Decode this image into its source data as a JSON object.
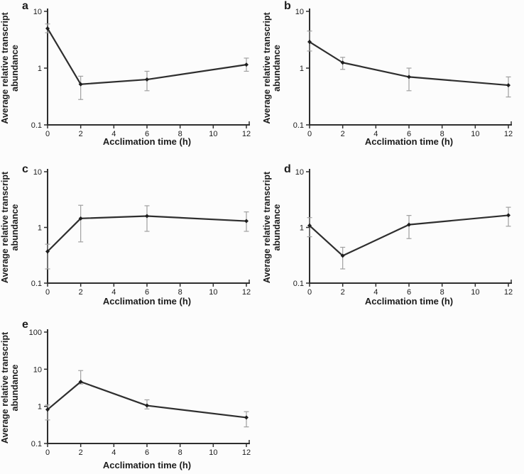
{
  "figure": {
    "background_color": "#fcfcfc",
    "axis_color": "#2e2e2e",
    "line_color": "#2e2e2e",
    "marker_color": "#1e1e1e",
    "error_bar_color": "#a0a0a0",
    "text_color": "#1c1c1c"
  },
  "chart_data": [
    {
      "type": "line",
      "panel": "a",
      "xlabel": "Acclimation time (h)",
      "ylabel_lines": [
        "Average relative transcript",
        "abundance"
      ],
      "yscale": "log",
      "xlim": [
        0,
        12
      ],
      "ylim": [
        0.1,
        10
      ],
      "xticks": [
        0,
        2,
        4,
        6,
        8,
        10,
        12
      ],
      "yticks": [
        0.1,
        1,
        10
      ],
      "x": [
        0,
        2,
        6,
        12
      ],
      "y": [
        5.0,
        0.52,
        0.63,
        1.15
      ],
      "y_err_low": [
        4.2,
        0.28,
        0.4,
        0.88
      ],
      "y_err_high": [
        6.0,
        0.72,
        0.88,
        1.5
      ]
    },
    {
      "type": "line",
      "panel": "b",
      "xlabel": "Acclimation time (h)",
      "ylabel_lines": [
        "Average relative transcript",
        "abundance"
      ],
      "yscale": "log",
      "xlim": [
        0,
        12
      ],
      "ylim": [
        0.1,
        10
      ],
      "xticks": [
        0,
        2,
        4,
        6,
        8,
        10,
        12
      ],
      "yticks": [
        0.1,
        1,
        10
      ],
      "x": [
        0,
        2,
        6,
        12
      ],
      "y": [
        2.9,
        1.25,
        0.7,
        0.5
      ],
      "y_err_low": [
        2.0,
        0.95,
        0.4,
        0.31
      ],
      "y_err_high": [
        4.5,
        1.55,
        1.0,
        0.7
      ]
    },
    {
      "type": "line",
      "panel": "c",
      "xlabel": "Acclimation time (h)",
      "ylabel_lines": [
        "Average relative transcript",
        "abundance"
      ],
      "yscale": "log",
      "xlim": [
        0,
        12
      ],
      "ylim": [
        0.1,
        10
      ],
      "xticks": [
        0,
        2,
        4,
        6,
        8,
        10,
        12
      ],
      "yticks": [
        0.1,
        1,
        10
      ],
      "x": [
        0,
        2,
        6,
        12
      ],
      "y": [
        0.37,
        1.45,
        1.6,
        1.3
      ],
      "y_err_low": [
        0.18,
        0.55,
        0.85,
        0.85
      ],
      "y_err_high": [
        0.5,
        2.5,
        2.45,
        1.9
      ]
    },
    {
      "type": "line",
      "panel": "d",
      "xlabel": "Acclimation time (h)",
      "ylabel_lines": [
        "Average relative transcript",
        "abundance"
      ],
      "yscale": "log",
      "xlim": [
        0,
        12
      ],
      "ylim": [
        0.1,
        10
      ],
      "xticks": [
        0,
        2,
        4,
        6,
        8,
        10,
        12
      ],
      "yticks": [
        0.1,
        1,
        10
      ],
      "x": [
        0,
        2,
        6,
        12
      ],
      "y": [
        1.08,
        0.31,
        1.12,
        1.65
      ],
      "y_err_low": [
        0.68,
        0.18,
        0.63,
        1.05
      ],
      "y_err_high": [
        1.5,
        0.44,
        1.64,
        2.3
      ]
    },
    {
      "type": "line",
      "panel": "e",
      "xlabel": "Acclimation time (h)",
      "ylabel_lines": [
        "Average relative transcript",
        "abundance"
      ],
      "yscale": "log",
      "xlim": [
        0,
        12
      ],
      "ylim": [
        0.1,
        100
      ],
      "xticks": [
        0,
        2,
        4,
        6,
        8,
        10,
        12
      ],
      "yticks": [
        0.1,
        1,
        10,
        100
      ],
      "x": [
        0,
        2,
        6,
        12
      ],
      "y": [
        0.82,
        4.6,
        1.05,
        0.5
      ],
      "y_err_low": [
        0.43,
        4.0,
        0.85,
        0.28
      ],
      "y_err_high": [
        1.09,
        9.2,
        1.5,
        0.72
      ]
    }
  ]
}
